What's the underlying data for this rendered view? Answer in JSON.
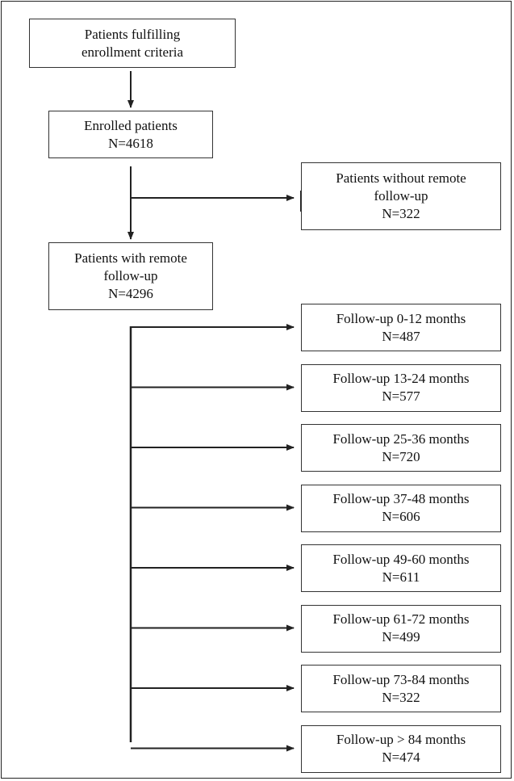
{
  "boxes": {
    "eligible": {
      "lines": [
        "Patients fulfilling",
        "enrollment criteria"
      ]
    },
    "enrolled": {
      "lines": [
        "Enrolled patients",
        "N=4618"
      ]
    },
    "excluded": {
      "lines": [
        "Patients without remote",
        "follow-up",
        "N=322"
      ]
    },
    "remote": {
      "lines": [
        "Patients with remote",
        "follow-up",
        "N=4296"
      ]
    }
  },
  "followup_groups": [
    {
      "label": "Follow-up 0-12 months",
      "n": "N=487"
    },
    {
      "label": "Follow-up 13-24 months",
      "n": "N=577"
    },
    {
      "label": "Follow-up 25-36 months",
      "n": "N=720"
    },
    {
      "label": "Follow-up 37-48 months",
      "n": "N=606"
    },
    {
      "label": "Follow-up 49-60 months",
      "n": "N=611"
    },
    {
      "label": "Follow-up 61-72 months",
      "n": "N=499"
    },
    {
      "label": "Follow-up 73-84 months",
      "n": "N=322"
    },
    {
      "label": "Follow-up > 84 months",
      "n": "N=474"
    }
  ],
  "colors": {
    "line": "#222222",
    "box_border": "#333333",
    "text": "#111111"
  }
}
